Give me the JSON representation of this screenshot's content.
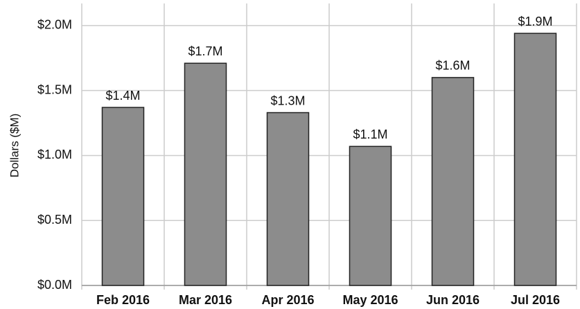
{
  "chart_data": {
    "type": "bar",
    "ylabel": "Dollars ($M)",
    "categories": [
      "Feb 2016",
      "Mar 2016",
      "Apr 2016",
      "May 2016",
      "Jun 2016",
      "Jul 2016"
    ],
    "values": [
      1.37,
      1.71,
      1.33,
      1.07,
      1.6,
      1.94
    ],
    "value_labels": [
      "$1.4M",
      "$1.7M",
      "$1.3M",
      "$1.1M",
      "$1.6M",
      "$1.9M"
    ],
    "color": "#8c8c8c",
    "ylim": [
      0,
      2.17
    ],
    "yticks": [
      {
        "value": 0,
        "label": "$0.0M"
      },
      {
        "value": 0.5,
        "label": "$0.5M"
      },
      {
        "value": 1.0,
        "label": "$1.0M"
      },
      {
        "value": 1.5,
        "label": "$1.5M"
      },
      {
        "value": 2.0,
        "label": "$2.0M"
      }
    ],
    "grid": true
  }
}
